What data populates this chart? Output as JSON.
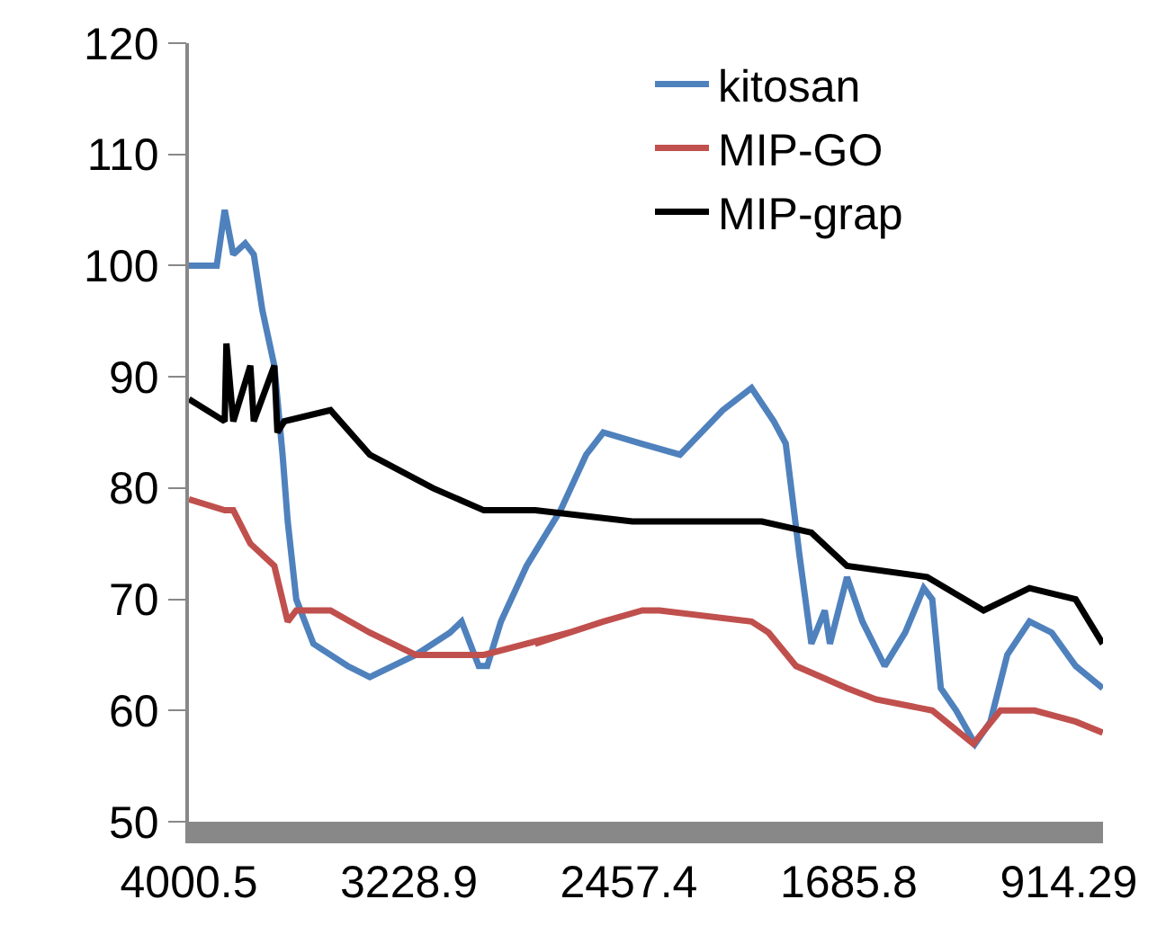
{
  "chart_data": {
    "type": "line",
    "xlim": [
      4000.5,
      794
    ],
    "xticks": [
      4000.5,
      3228.9,
      2457.4,
      1685.8,
      914.29
    ],
    "ylim": [
      50,
      120
    ],
    "yticks": [
      50,
      60,
      70,
      80,
      90,
      100,
      110,
      120
    ],
    "grid": false,
    "legend": "top right",
    "marker": "none",
    "line_style": "solid",
    "series": [
      {
        "name": "kitosan",
        "color": "#4f81bd",
        "x": [
          4000.5,
          3903,
          3875,
          3845,
          3803,
          3773,
          3743,
          3701,
          3672,
          3654,
          3624,
          3564,
          3444,
          3366,
          3205,
          3085,
          3044,
          2984,
          2954,
          2906,
          2816,
          2697,
          2607,
          2547,
          2415,
          2278,
          2128,
          2027,
          1949,
          1907,
          1859,
          1817,
          1770,
          1752,
          1692,
          1638,
          1560,
          1488,
          1423,
          1393,
          1363,
          1309,
          1243,
          1189,
          1130,
          1052,
          974,
          890,
          795
        ],
        "values": [
          100,
          100,
          105,
          101,
          102,
          101,
          96,
          91,
          83,
          77,
          70,
          66,
          64,
          63,
          65,
          67,
          68,
          64,
          64,
          68,
          73,
          78,
          83,
          85,
          84,
          83,
          87,
          89,
          86,
          84,
          74,
          66,
          69,
          66,
          72,
          68,
          64,
          67,
          71,
          70,
          62,
          60,
          57,
          59,
          65,
          68,
          67,
          64,
          62
        ]
      },
      {
        "name": "MIP-GO",
        "color": "#c0504d",
        "x": [
          4000.5,
          3875,
          3845,
          3785,
          3701,
          3654,
          3624,
          3504,
          3366,
          3205,
          2966,
          2667,
          2787,
          2547,
          2410,
          2350,
          2027,
          1967,
          1871,
          1692,
          1590,
          1393,
          1249,
          1154,
          1034,
          890,
          795
        ],
        "values": [
          79,
          78,
          78,
          75,
          73,
          68,
          69,
          69,
          67,
          65,
          65,
          67,
          66,
          68,
          69,
          69,
          68,
          67,
          64,
          62,
          61,
          60,
          57,
          60,
          60,
          59,
          58
        ]
      },
      {
        "name": "MIP-grap",
        "color": "#000000",
        "x": [
          4000.5,
          3875,
          3869,
          3845,
          3785,
          3773,
          3701,
          3690,
          3666,
          3504,
          3366,
          3145,
          2966,
          2954,
          2786,
          2445,
          1991,
          1817,
          1692,
          1411,
          1213,
          1052,
          890,
          795
        ],
        "values": [
          88,
          86,
          93,
          86,
          91,
          86,
          91,
          85,
          86,
          87,
          83,
          80,
          78,
          78,
          78,
          77,
          77,
          76,
          73,
          72,
          69,
          71,
          70,
          66
        ]
      }
    ]
  }
}
